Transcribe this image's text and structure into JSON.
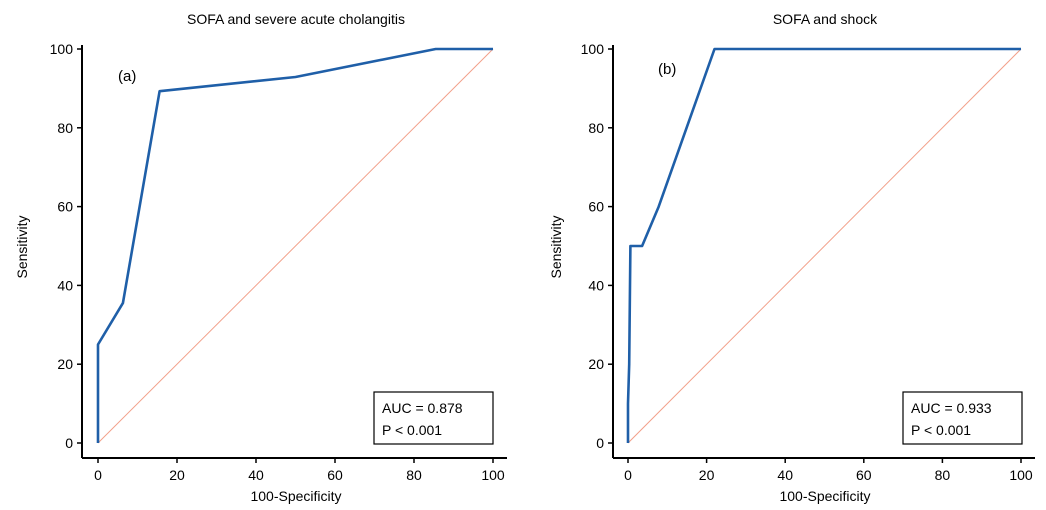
{
  "chart_data": [
    {
      "type": "line",
      "title": "SOFA and severe acute cholangitis",
      "panel_label": "(a)",
      "xlabel": "100-Specificity",
      "ylabel": "Sensitivity",
      "xlim": [
        0,
        100
      ],
      "ylim": [
        0,
        100
      ],
      "xticks": [
        "0",
        "20",
        "40",
        "60",
        "80",
        "100"
      ],
      "yticks": [
        "0",
        "20",
        "40",
        "60",
        "80",
        "100"
      ],
      "series": [
        {
          "x": [
            0,
            0,
            0,
            6.3,
            15.6,
            50.0,
            85.5,
            100
          ],
          "y": [
            0,
            0,
            25.0,
            35.5,
            89.3,
            92.9,
            100,
            100
          ],
          "color": "#1f5fa8"
        },
        {
          "x": [
            0,
            100
          ],
          "y": [
            0,
            100
          ],
          "color": "#f2a08a"
        }
      ],
      "annotations": [
        "AUC = 0.878",
        "P < 0.001"
      ],
      "grid": false
    },
    {
      "type": "line",
      "title": "SOFA and shock",
      "panel_label": "(b)",
      "xlabel": "100-Specificity",
      "ylabel": "Sensitivity",
      "xlim": [
        0,
        100
      ],
      "ylim": [
        0,
        100
      ],
      "xticks": [
        "0",
        "20",
        "40",
        "60",
        "80",
        "100"
      ],
      "yticks": [
        "0",
        "20",
        "40",
        "60",
        "80",
        "100"
      ],
      "series": [
        {
          "x": [
            0,
            0,
            0.3,
            0.6,
            3.6,
            7.8,
            22.0,
            100
          ],
          "y": [
            0,
            10.0,
            20.0,
            50.0,
            50.0,
            60.0,
            100,
            100
          ],
          "color": "#1f5fa8"
        },
        {
          "x": [
            0,
            100
          ],
          "y": [
            0,
            100
          ],
          "color": "#f2a08a"
        }
      ],
      "annotations": [
        "AUC = 0.933",
        "P < 0.001"
      ],
      "grid": false
    }
  ]
}
